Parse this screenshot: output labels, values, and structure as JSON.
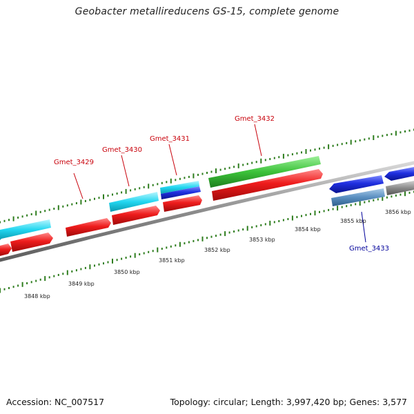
{
  "title": "Geobacter metallireducens GS-15, complete genome",
  "footer": {
    "accession": "Accession: NC_007517",
    "summary": "Topology: circular; Length: 3,997,420 bp; Genes: 3,577"
  },
  "colors": {
    "backbone": "#8c8c8c",
    "ticks": "#2e7d1e",
    "cds_forward": "#e8191c",
    "cds_reverse": "#1f2fe0",
    "rna_cyan": "#22d6f0",
    "green_feature": "#3cc23a",
    "gray_feature": "#7f7f7f",
    "steel_feature": "#5a8fc0",
    "label_forward": "#c8000a",
    "label_reverse": "#00009a"
  },
  "kbp_labels": [
    "3848 kbp",
    "3849 kbp",
    "3850 kbp",
    "3851 kbp",
    "3852 kbp",
    "3853 kbp",
    "3854 kbp",
    "3855 kbp",
    "3856 kbp"
  ],
  "gene_labels": [
    {
      "text": "Gmet_3429",
      "strand": "forward"
    },
    {
      "text": "Gmet_3430",
      "strand": "forward"
    },
    {
      "text": "Gmet_3431",
      "strand": "forward"
    },
    {
      "text": "Gmet_3432",
      "strand": "forward"
    },
    {
      "text": "Gmet_3433",
      "strand": "reverse"
    }
  ]
}
